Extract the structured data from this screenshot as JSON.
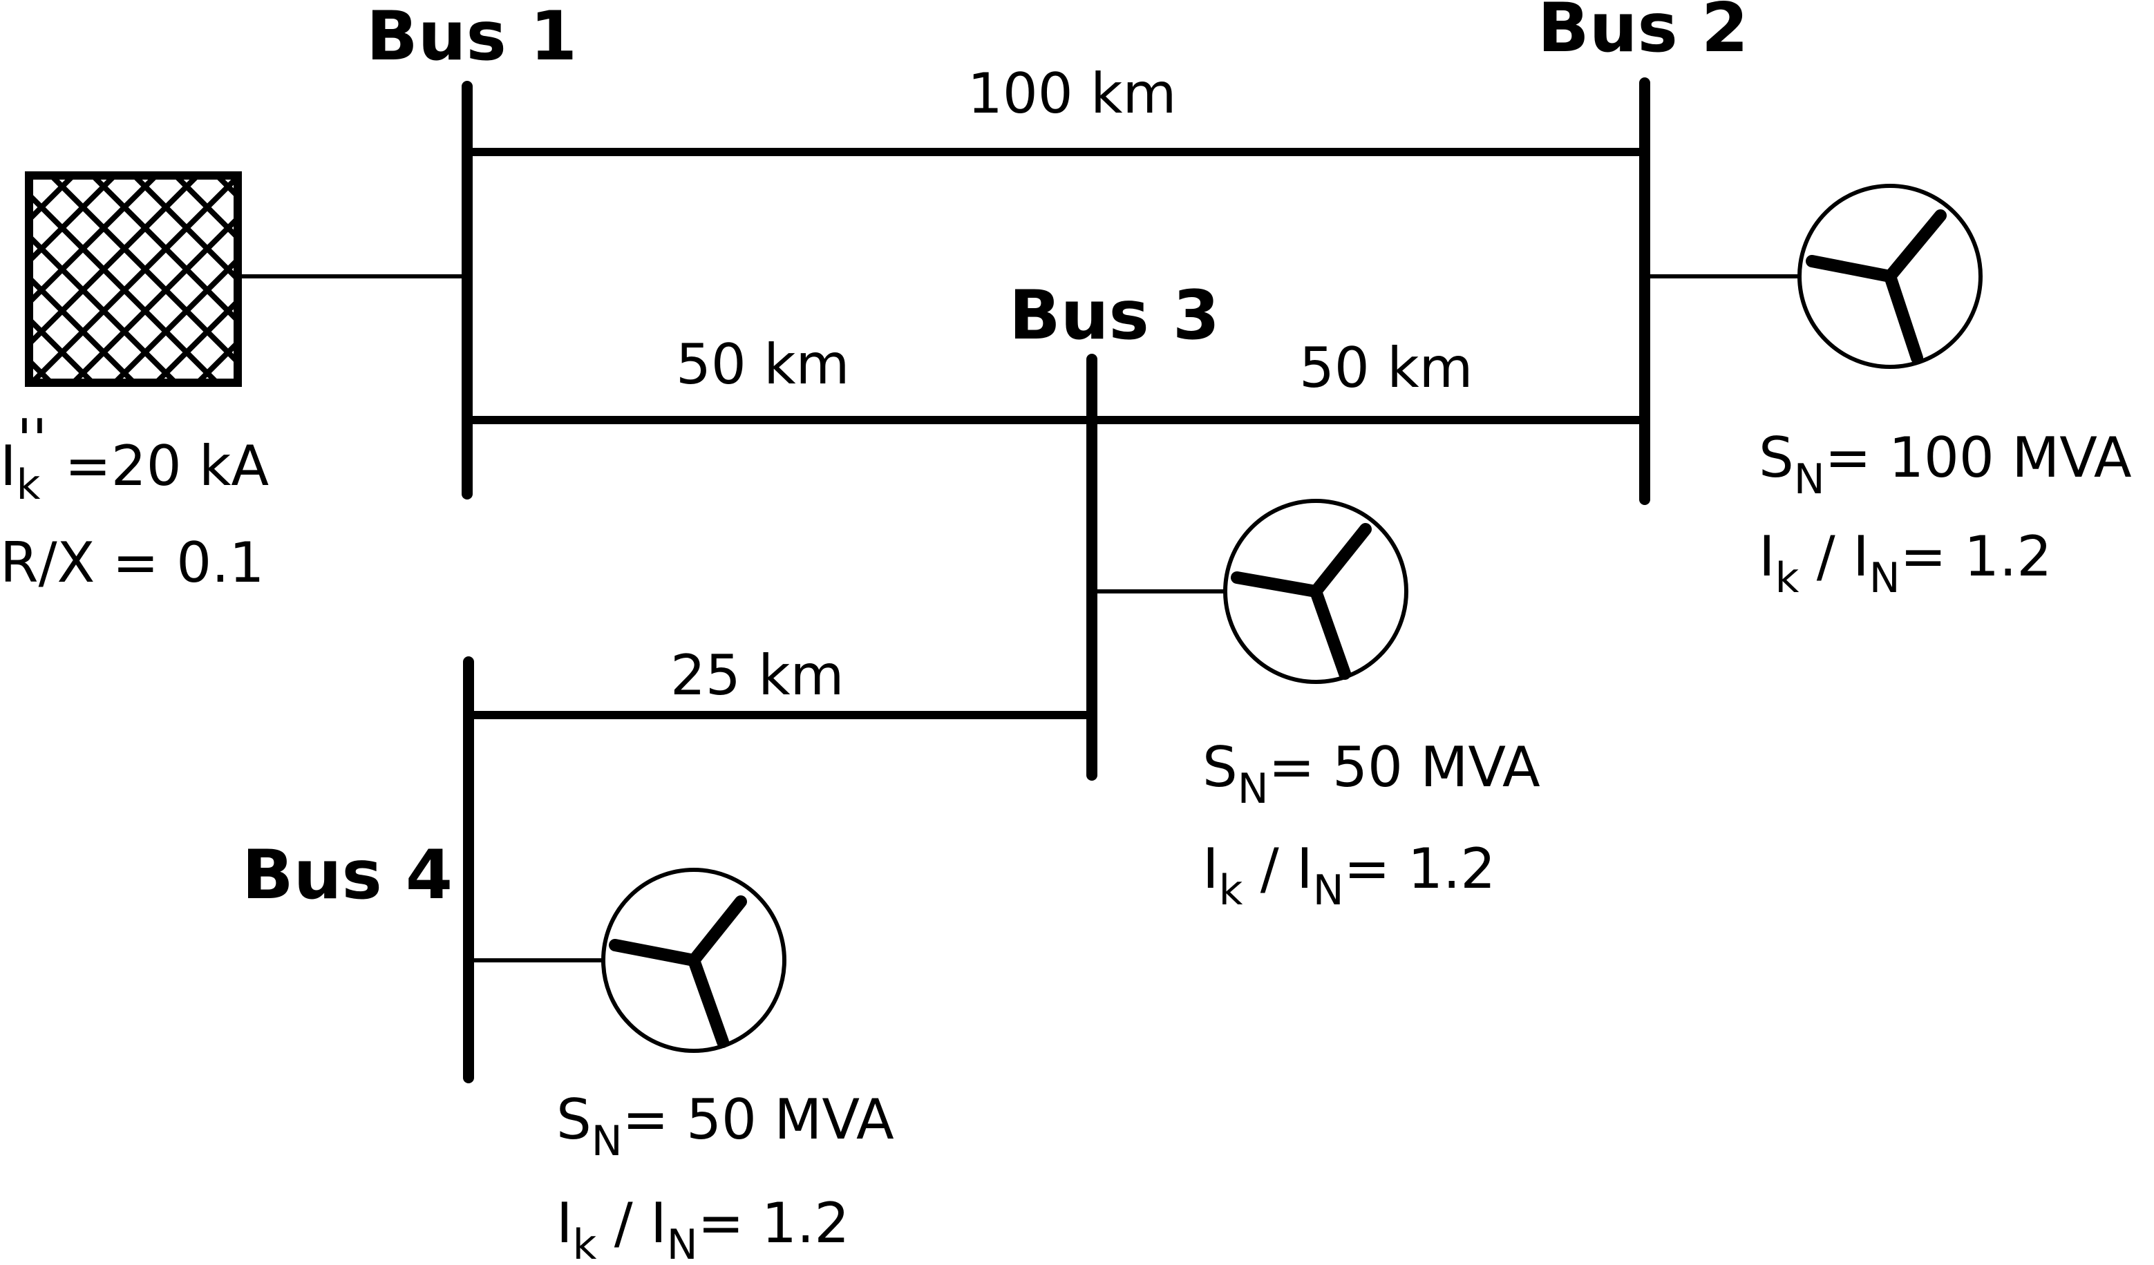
{
  "buses": {
    "bus1": "Bus 1",
    "bus2": "Bus 2",
    "bus3": "Bus 3",
    "bus4": "Bus 4"
  },
  "lines": {
    "bus1_bus2": "100 km",
    "bus1_bus3": "50 km",
    "bus3_bus2": "50 km",
    "bus4_bus3": "25 km"
  },
  "grid": {
    "ik_symbol": "I",
    "ik_sub": "k",
    "ik_prime": "''",
    "ik_value": " =20 kA",
    "rx": "R/X = 0.1"
  },
  "gen_bus2": {
    "sn_symbol": "S",
    "sn_sub": "N",
    "sn_value": "= 100 MVA",
    "ratio_i1": "I",
    "ratio_sub1": "k",
    "ratio_mid": " / I",
    "ratio_sub2": "N",
    "ratio_value": "= 1.2"
  },
  "gen_bus3": {
    "sn_symbol": "S",
    "sn_sub": "N",
    "sn_value": "= 50 MVA",
    "ratio_i1": "I",
    "ratio_sub1": "k",
    "ratio_mid": " / I",
    "ratio_sub2": "N",
    "ratio_value": "= 1.2"
  },
  "gen_bus4": {
    "sn_symbol": "S",
    "sn_sub": "N",
    "sn_value": "= 50 MVA",
    "ratio_i1": "I",
    "ratio_sub1": "k",
    "ratio_mid": " / I",
    "ratio_sub2": "N",
    "ratio_value": "= 1.2"
  }
}
